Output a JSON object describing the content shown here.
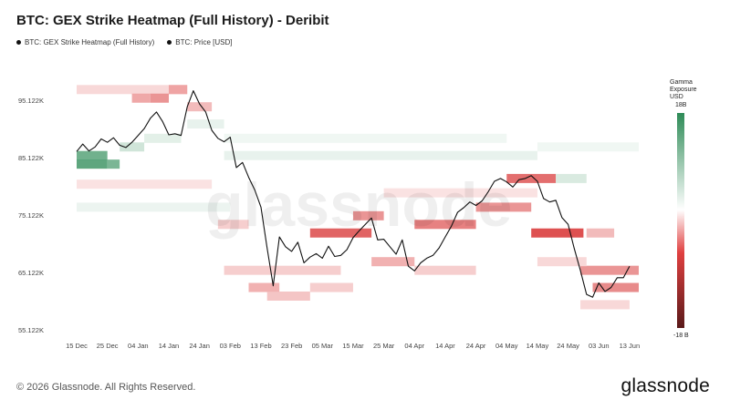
{
  "chart_title": "BTC: GEX Strike Heatmap (Full History) - Deribit",
  "legend": [
    {
      "label": "BTC: GEX Strike Heatmap (Full History)",
      "color": "#111111"
    },
    {
      "label": "BTC: Price [USD]",
      "color": "#111111"
    }
  ],
  "colorbar": {
    "title": "Gamma Exposure USD",
    "title_lines": [
      "Gamma",
      "Exposure",
      "USD"
    ],
    "max_label": "18B",
    "min_label": "-18 B",
    "positive_color": "#2e8b57",
    "negative_color": "#cc1f1f",
    "bottom_color": "#5a1a1a"
  },
  "watermark": "glassnode",
  "footer": {
    "copyright": "© 2026 Glassnode. All Rights Reserved.",
    "logo": "glassnode"
  },
  "chart_data": {
    "type": "heatmap",
    "title": "BTC: GEX Strike Heatmap (Full History) - Deribit",
    "x_tick_labels": [
      "15 Dec",
      "25 Dec",
      "04 Jan",
      "14 Jan",
      "24 Jan",
      "03 Feb",
      "13 Feb",
      "23 Feb",
      "05 Mar",
      "15 Mar",
      "25 Mar",
      "04 Apr",
      "14 Apr",
      "24 Apr",
      "04 May",
      "14 May",
      "24 May",
      "03 Jun",
      "13 Jun"
    ],
    "y_tick_labels": [
      "95.122K",
      "85.122K",
      "75.122K",
      "65.122K",
      "55.122K"
    ],
    "y_tick_values": [
      95122,
      85122,
      75122,
      65122,
      55122
    ],
    "ylim": [
      55122,
      98000
    ],
    "x_range_days": [
      0,
      183
    ],
    "series": [
      {
        "name": "BTC: Price [USD]",
        "type": "line",
        "color": "#111111",
        "x_days": [
          0,
          2,
          4,
          6,
          8,
          10,
          12,
          14,
          16,
          18,
          20,
          22,
          24,
          26,
          28,
          30,
          32,
          34,
          36,
          38,
          40,
          42,
          44,
          46,
          48,
          50,
          52,
          54,
          56,
          58,
          60,
          62,
          64,
          66,
          68,
          70,
          72,
          74,
          76,
          78,
          80,
          82,
          84,
          86,
          88,
          90,
          92,
          94,
          96,
          98,
          100,
          102,
          104,
          106,
          108,
          110,
          112,
          114,
          116,
          118,
          120,
          122,
          124,
          126,
          128,
          130,
          132,
          134,
          136,
          138,
          140,
          142,
          144,
          146,
          148,
          150,
          152,
          154,
          156,
          158,
          160,
          162,
          164,
          166,
          168,
          170,
          172,
          174,
          176,
          178,
          180
        ],
        "y": [
          86200,
          87500,
          86300,
          87000,
          88400,
          87800,
          88600,
          87300,
          86900,
          87800,
          89000,
          90200,
          92000,
          93100,
          91400,
          89100,
          89300,
          89000,
          94000,
          96800,
          94500,
          93100,
          89900,
          88500,
          87900,
          88700,
          83400,
          84300,
          81700,
          79500,
          76500,
          69400,
          62800,
          71300,
          69600,
          68800,
          70400,
          66800,
          67800,
          68400,
          67600,
          69700,
          67900,
          68100,
          69100,
          71200,
          72400,
          73500,
          74600,
          70800,
          70900,
          69600,
          68300,
          70800,
          66200,
          65400,
          66800,
          67600,
          68100,
          69400,
          71300,
          73200,
          75600,
          76400,
          77400,
          76800,
          77600,
          79200,
          81000,
          81500,
          80900,
          80000,
          81300,
          81500,
          82000,
          81000,
          78000,
          77400,
          77700,
          74700,
          73500,
          69300,
          65500,
          61300,
          60800,
          63300,
          61800,
          62500,
          64200,
          64200,
          66200
        ]
      }
    ],
    "heatmap_cells": [
      {
        "day_start": 0,
        "day_end": 10,
        "strike": 85500,
        "value": 0.75
      },
      {
        "day_start": 0,
        "day_end": 10,
        "strike": 84000,
        "value": 0.85
      },
      {
        "day_start": 10,
        "day_end": 14,
        "strike": 84000,
        "value": 0.7
      },
      {
        "day_start": 14,
        "day_end": 22,
        "strike": 87000,
        "value": 0.25
      },
      {
        "day_start": 22,
        "day_end": 34,
        "strike": 88500,
        "value": 0.15
      },
      {
        "day_start": 0,
        "day_end": 36,
        "strike": 97000,
        "value": -0.2
      },
      {
        "day_start": 18,
        "day_end": 24,
        "strike": 95500,
        "value": -0.45
      },
      {
        "day_start": 24,
        "day_end": 30,
        "strike": 95500,
        "value": -0.55
      },
      {
        "day_start": 30,
        "day_end": 36,
        "strike": 97000,
        "value": -0.45
      },
      {
        "day_start": 36,
        "day_end": 44,
        "strike": 94000,
        "value": -0.35
      },
      {
        "day_start": 0,
        "day_end": 44,
        "strike": 80500,
        "value": -0.15
      },
      {
        "day_start": 36,
        "day_end": 48,
        "strike": 91000,
        "value": 0.12
      },
      {
        "day_start": 48,
        "day_end": 150,
        "strike": 85500,
        "value": 0.12
      },
      {
        "day_start": 48,
        "day_end": 140,
        "strike": 88500,
        "value": 0.08
      },
      {
        "day_start": 150,
        "day_end": 183,
        "strike": 87000,
        "value": 0.08
      },
      {
        "day_start": 46,
        "day_end": 56,
        "strike": 73500,
        "value": -0.25
      },
      {
        "day_start": 56,
        "day_end": 66,
        "strike": 62500,
        "value": -0.4
      },
      {
        "day_start": 48,
        "day_end": 86,
        "strike": 65500,
        "value": -0.25
      },
      {
        "day_start": 62,
        "day_end": 76,
        "strike": 61000,
        "value": -0.3
      },
      {
        "day_start": 76,
        "day_end": 90,
        "strike": 62500,
        "value": -0.25
      },
      {
        "day_start": 76,
        "day_end": 96,
        "strike": 72000,
        "value": -0.8
      },
      {
        "day_start": 90,
        "day_end": 100,
        "strike": 75000,
        "value": -0.55
      },
      {
        "day_start": 96,
        "day_end": 110,
        "strike": 67000,
        "value": -0.4
      },
      {
        "day_start": 110,
        "day_end": 130,
        "strike": 73500,
        "value": -0.65
      },
      {
        "day_start": 110,
        "day_end": 130,
        "strike": 65500,
        "value": -0.25
      },
      {
        "day_start": 130,
        "day_end": 148,
        "strike": 76500,
        "value": -0.55
      },
      {
        "day_start": 140,
        "day_end": 156,
        "strike": 81500,
        "value": -0.75
      },
      {
        "day_start": 156,
        "day_end": 166,
        "strike": 81500,
        "value": 0.2
      },
      {
        "day_start": 148,
        "day_end": 165,
        "strike": 72000,
        "value": -0.9
      },
      {
        "day_start": 166,
        "day_end": 175,
        "strike": 72000,
        "value": -0.35
      },
      {
        "day_start": 164,
        "day_end": 183,
        "strike": 65500,
        "value": -0.55
      },
      {
        "day_start": 168,
        "day_end": 183,
        "strike": 62500,
        "value": -0.6
      },
      {
        "day_start": 164,
        "day_end": 180,
        "strike": 59500,
        "value": -0.2
      },
      {
        "day_start": 150,
        "day_end": 166,
        "strike": 67000,
        "value": -0.2
      },
      {
        "day_start": 100,
        "day_end": 150,
        "strike": 79000,
        "value": -0.15
      },
      {
        "day_start": 0,
        "day_end": 50,
        "strike": 76500,
        "value": 0.1
      }
    ]
  }
}
